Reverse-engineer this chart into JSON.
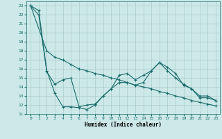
{
  "xlabel": "Humidex (Indice chaleur)",
  "background_color": "#cce8e8",
  "grid_color": "#aacccc",
  "line_color": "#1a6b6b",
  "xlim": [
    -0.5,
    23.5
  ],
  "ylim": [
    11,
    23.5
  ],
  "yticks": [
    11,
    12,
    13,
    14,
    15,
    16,
    17,
    18,
    19,
    20,
    21,
    22,
    23
  ],
  "xticks": [
    0,
    1,
    2,
    3,
    4,
    5,
    6,
    7,
    8,
    9,
    10,
    11,
    12,
    13,
    14,
    15,
    16,
    17,
    18,
    19,
    20,
    21,
    22,
    23
  ],
  "line1_x": [
    0,
    1,
    2,
    3,
    4,
    5,
    6,
    7,
    8,
    9,
    10,
    11,
    12,
    13,
    14,
    15,
    16,
    17,
    18,
    19,
    20,
    21,
    22,
    23
  ],
  "line1_y": [
    23.0,
    22.5,
    15.8,
    13.3,
    11.8,
    11.8,
    11.7,
    11.5,
    12.0,
    13.0,
    13.8,
    15.3,
    15.5,
    14.8,
    15.3,
    15.8,
    16.7,
    16.2,
    15.5,
    14.2,
    13.8,
    13.0,
    13.0,
    12.5
  ],
  "line2_x": [
    0,
    2,
    3,
    4,
    5,
    6,
    7,
    8,
    9,
    10,
    11,
    12,
    13,
    14,
    15,
    16,
    17,
    18,
    19,
    20,
    21,
    22,
    23
  ],
  "line2_y": [
    23.0,
    18.0,
    17.3,
    17.0,
    16.5,
    16.0,
    15.8,
    15.5,
    15.3,
    15.0,
    14.8,
    14.5,
    14.2,
    14.0,
    13.8,
    13.5,
    13.3,
    13.0,
    12.8,
    12.5,
    12.3,
    12.1,
    11.9
  ],
  "line3_x": [
    0,
    1,
    2,
    3,
    4,
    5,
    6,
    7,
    8,
    9,
    10,
    11,
    12,
    13,
    14,
    15,
    16,
    17,
    18,
    19,
    20,
    21,
    22,
    23
  ],
  "line3_y": [
    23.0,
    22.0,
    15.7,
    14.3,
    14.8,
    15.0,
    11.8,
    12.0,
    12.1,
    13.0,
    13.8,
    14.5,
    14.5,
    14.2,
    14.5,
    15.8,
    16.7,
    15.8,
    15.0,
    14.3,
    13.8,
    12.8,
    12.8,
    12.5
  ]
}
